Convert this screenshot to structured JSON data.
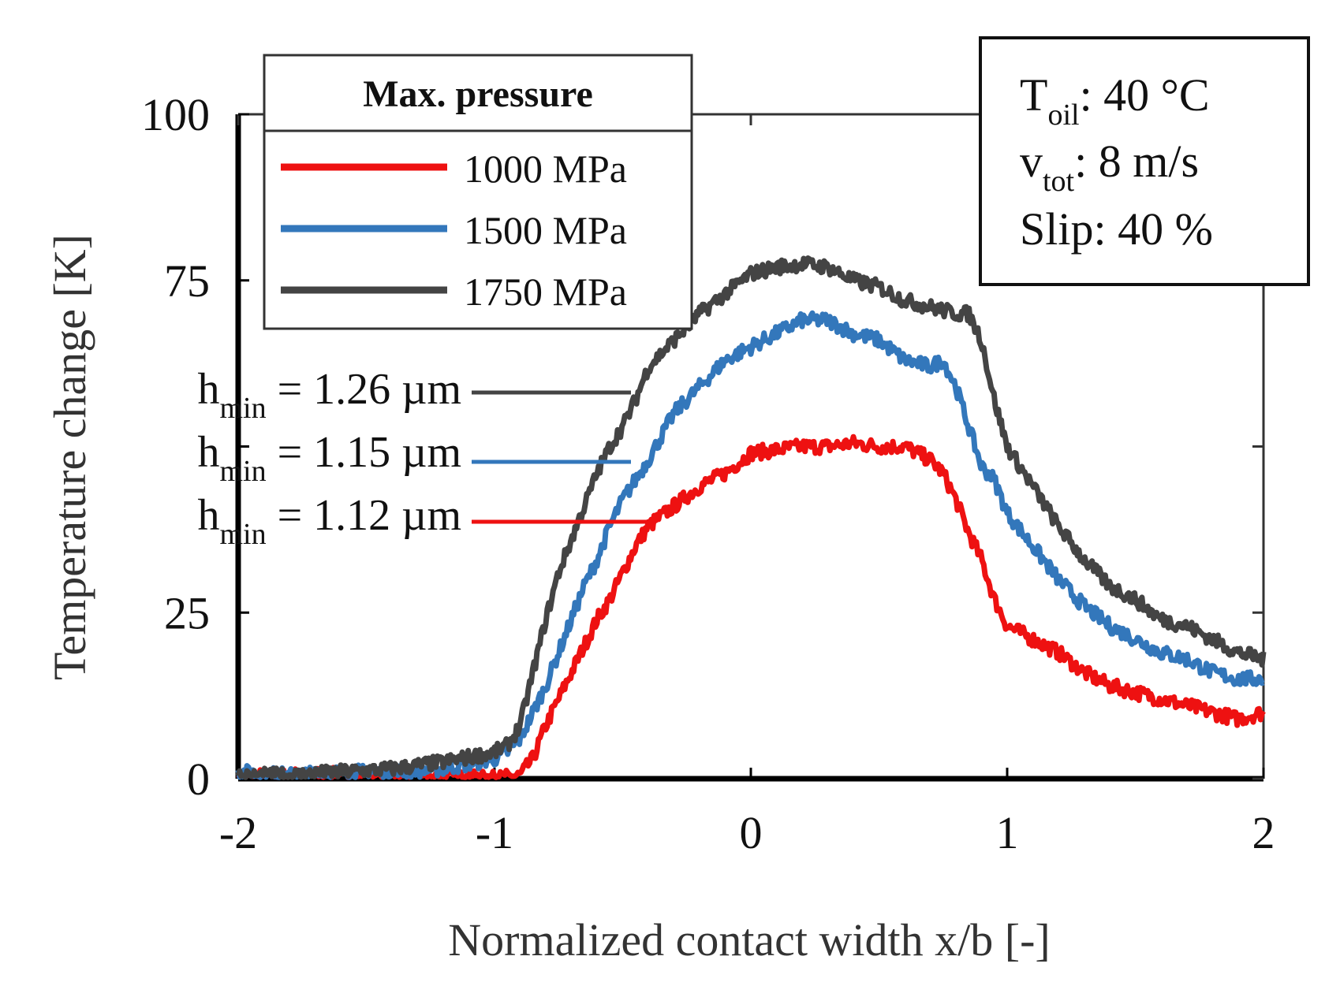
{
  "chart_data": {
    "type": "line",
    "title": "",
    "xlabel": "Normalized contact width x/b [-]",
    "ylabel": "Temperature change [K]",
    "xlim": [
      -2,
      2
    ],
    "ylim": [
      0,
      100
    ],
    "x_ticks": [
      -2,
      -1,
      0,
      1,
      2
    ],
    "x_tick_labels": [
      "-2",
      "-1",
      "0",
      "1",
      "2"
    ],
    "y_ticks": [
      0,
      25,
      50,
      75,
      100
    ],
    "y_tick_labels": [
      "0",
      "25",
      "",
      "75",
      "100"
    ],
    "grid": false,
    "legend": {
      "title": "Max. pressure",
      "position": "top-left"
    },
    "series": [
      {
        "name": "1000 MPa",
        "color": "#ee1111",
        "points": [
          [
            -2.0,
            0.3
          ],
          [
            -1.8,
            0.5
          ],
          [
            -1.6,
            0.6
          ],
          [
            -1.4,
            0.5
          ],
          [
            -1.2,
            0.2
          ],
          [
            -1.0,
            0.0
          ],
          [
            -0.9,
            0.5
          ],
          [
            -0.85,
            3
          ],
          [
            -0.8,
            8
          ],
          [
            -0.75,
            12
          ],
          [
            -0.7,
            16
          ],
          [
            -0.65,
            20
          ],
          [
            -0.6,
            24
          ],
          [
            -0.55,
            27
          ],
          [
            -0.5,
            31
          ],
          [
            -0.45,
            35
          ],
          [
            -0.4,
            38
          ],
          [
            -0.3,
            41
          ],
          [
            -0.2,
            44
          ],
          [
            -0.1,
            46
          ],
          [
            0.0,
            49
          ],
          [
            0.1,
            49.5
          ],
          [
            0.2,
            50
          ],
          [
            0.3,
            50
          ],
          [
            0.4,
            50.5
          ],
          [
            0.5,
            50
          ],
          [
            0.6,
            50
          ],
          [
            0.7,
            48
          ],
          [
            0.75,
            46
          ],
          [
            0.8,
            42
          ],
          [
            0.85,
            37
          ],
          [
            0.9,
            33
          ],
          [
            0.95,
            27
          ],
          [
            1.0,
            23
          ],
          [
            1.1,
            21
          ],
          [
            1.2,
            19
          ],
          [
            1.3,
            16
          ],
          [
            1.4,
            14
          ],
          [
            1.5,
            13
          ],
          [
            1.6,
            12
          ],
          [
            1.7,
            11
          ],
          [
            1.8,
            10
          ],
          [
            1.9,
            9
          ],
          [
            2.0,
            10
          ]
        ]
      },
      {
        "name": "1500 MPa",
        "color": "#3377bb",
        "points": [
          [
            -2.0,
            1
          ],
          [
            -1.8,
            0.5
          ],
          [
            -1.6,
            1
          ],
          [
            -1.4,
            1
          ],
          [
            -1.2,
            1.5
          ],
          [
            -1.0,
            3
          ],
          [
            -0.95,
            4
          ],
          [
            -0.9,
            6
          ],
          [
            -0.85,
            10
          ],
          [
            -0.8,
            14
          ],
          [
            -0.75,
            19
          ],
          [
            -0.7,
            24
          ],
          [
            -0.65,
            29
          ],
          [
            -0.6,
            33
          ],
          [
            -0.55,
            38
          ],
          [
            -0.5,
            42
          ],
          [
            -0.45,
            45
          ],
          [
            -0.4,
            48
          ],
          [
            -0.3,
            55
          ],
          [
            -0.2,
            59
          ],
          [
            -0.1,
            63
          ],
          [
            0.0,
            65
          ],
          [
            0.1,
            67
          ],
          [
            0.2,
            69
          ],
          [
            0.3,
            69
          ],
          [
            0.4,
            67
          ],
          [
            0.5,
            66
          ],
          [
            0.6,
            63
          ],
          [
            0.7,
            62
          ],
          [
            0.75,
            63
          ],
          [
            0.8,
            59
          ],
          [
            0.85,
            53
          ],
          [
            0.9,
            47
          ],
          [
            0.95,
            45
          ],
          [
            1.0,
            40
          ],
          [
            1.1,
            35
          ],
          [
            1.2,
            30
          ],
          [
            1.3,
            26
          ],
          [
            1.4,
            23
          ],
          [
            1.5,
            21
          ],
          [
            1.6,
            19
          ],
          [
            1.7,
            18
          ],
          [
            1.8,
            16
          ],
          [
            1.9,
            15
          ],
          [
            2.0,
            15
          ]
        ]
      },
      {
        "name": "1750 MPa",
        "color": "#444444",
        "points": [
          [
            -2.0,
            0.5
          ],
          [
            -1.8,
            0.5
          ],
          [
            -1.6,
            1
          ],
          [
            -1.4,
            1.5
          ],
          [
            -1.2,
            2.5
          ],
          [
            -1.0,
            4
          ],
          [
            -0.95,
            5
          ],
          [
            -0.9,
            8
          ],
          [
            -0.85,
            16
          ],
          [
            -0.8,
            24
          ],
          [
            -0.75,
            31
          ],
          [
            -0.7,
            36
          ],
          [
            -0.65,
            41
          ],
          [
            -0.6,
            46
          ],
          [
            -0.55,
            50
          ],
          [
            -0.5,
            53
          ],
          [
            -0.45,
            57
          ],
          [
            -0.4,
            62
          ],
          [
            -0.3,
            66
          ],
          [
            -0.2,
            70
          ],
          [
            -0.1,
            73
          ],
          [
            0.0,
            76
          ],
          [
            0.1,
            77
          ],
          [
            0.2,
            77.5
          ],
          [
            0.3,
            77
          ],
          [
            0.4,
            75
          ],
          [
            0.5,
            74
          ],
          [
            0.6,
            72
          ],
          [
            0.7,
            71
          ],
          [
            0.8,
            70
          ],
          [
            0.85,
            70
          ],
          [
            0.9,
            66
          ],
          [
            0.95,
            57
          ],
          [
            1.0,
            50
          ],
          [
            1.1,
            44
          ],
          [
            1.2,
            38
          ],
          [
            1.3,
            33
          ],
          [
            1.4,
            29
          ],
          [
            1.5,
            27
          ],
          [
            1.6,
            24
          ],
          [
            1.7,
            23
          ],
          [
            1.8,
            21
          ],
          [
            1.9,
            19
          ],
          [
            2.0,
            18
          ]
        ]
      }
    ],
    "annotations": [
      {
        "base": "h",
        "sub": "min",
        "text": " = 1.26 µm",
        "color": "#444444",
        "series": "1750 MPa"
      },
      {
        "base": "h",
        "sub": "min",
        "text": " = 1.15 µm",
        "color": "#3377bb",
        "series": "1500 MPa"
      },
      {
        "base": "h",
        "sub": "min",
        "text": " = 1.12 µm",
        "color": "#ee1111",
        "series": "1000 MPa"
      }
    ],
    "conditions": [
      {
        "base": "T",
        "sub": "oil",
        "text": ": 40 °C"
      },
      {
        "base": "v",
        "sub": "tot",
        "text": ": 8 m/s"
      },
      {
        "base": "Slip",
        "sub": "",
        "text": ": 40 %"
      }
    ]
  }
}
